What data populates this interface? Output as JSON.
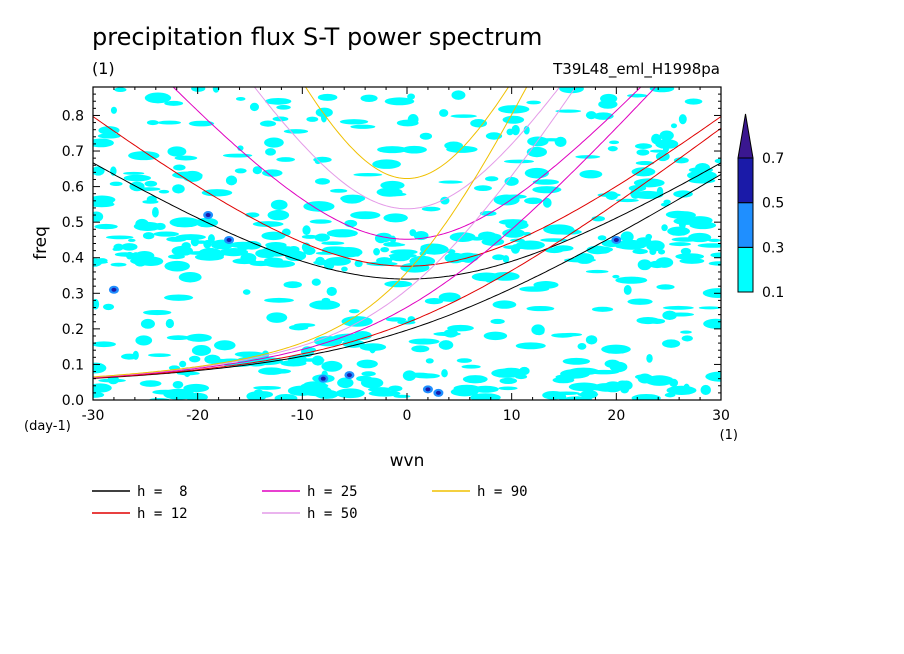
{
  "chart_data": {
    "type": "heatmap",
    "title": "precipitation flux S-T power spectrum",
    "units": "(1)",
    "subtitle": "T39L48_eml_H1998pa",
    "xlabel": "wvn",
    "ylabel": "freq",
    "y_units": "(day-1)",
    "x_units": "(1)",
    "xlim": [
      -30,
      30
    ],
    "ylim": [
      0,
      0.88
    ],
    "x_ticks": [
      -30,
      -20,
      -10,
      0,
      10,
      20,
      30
    ],
    "x_tick_labels": [
      "-30",
      "-20",
      "-10",
      "0",
      "10",
      "20",
      "30"
    ],
    "y_ticks": [
      0.0,
      0.1,
      0.2,
      0.3,
      0.4,
      0.5,
      0.6,
      0.7,
      0.8
    ],
    "y_tick_labels": [
      "0.0",
      "0.1",
      "0.2",
      "0.3",
      "0.4",
      "0.5",
      "0.6",
      "0.7",
      "0.8"
    ],
    "colorbar": {
      "levels": [
        0.1,
        0.3,
        0.5,
        0.7
      ],
      "labels": [
        "0.1",
        "0.3",
        "0.5",
        "0.7"
      ],
      "colors": [
        "#00ffff",
        "#1f8fff",
        "#1a1aa8",
        "#3a1790"
      ]
    },
    "dispersion_curves": [
      {
        "name": "h =  8",
        "h": 8,
        "color": "#000000"
      },
      {
        "name": "h = 12",
        "h": 12,
        "color": "#e00000"
      },
      {
        "name": "h = 25",
        "h": 25,
        "color": "#e000c0"
      },
      {
        "name": "h = 50",
        "h": 50,
        "color": "#e49be8"
      },
      {
        "name": "h = 90",
        "h": 90,
        "color": "#f0c000"
      }
    ]
  }
}
